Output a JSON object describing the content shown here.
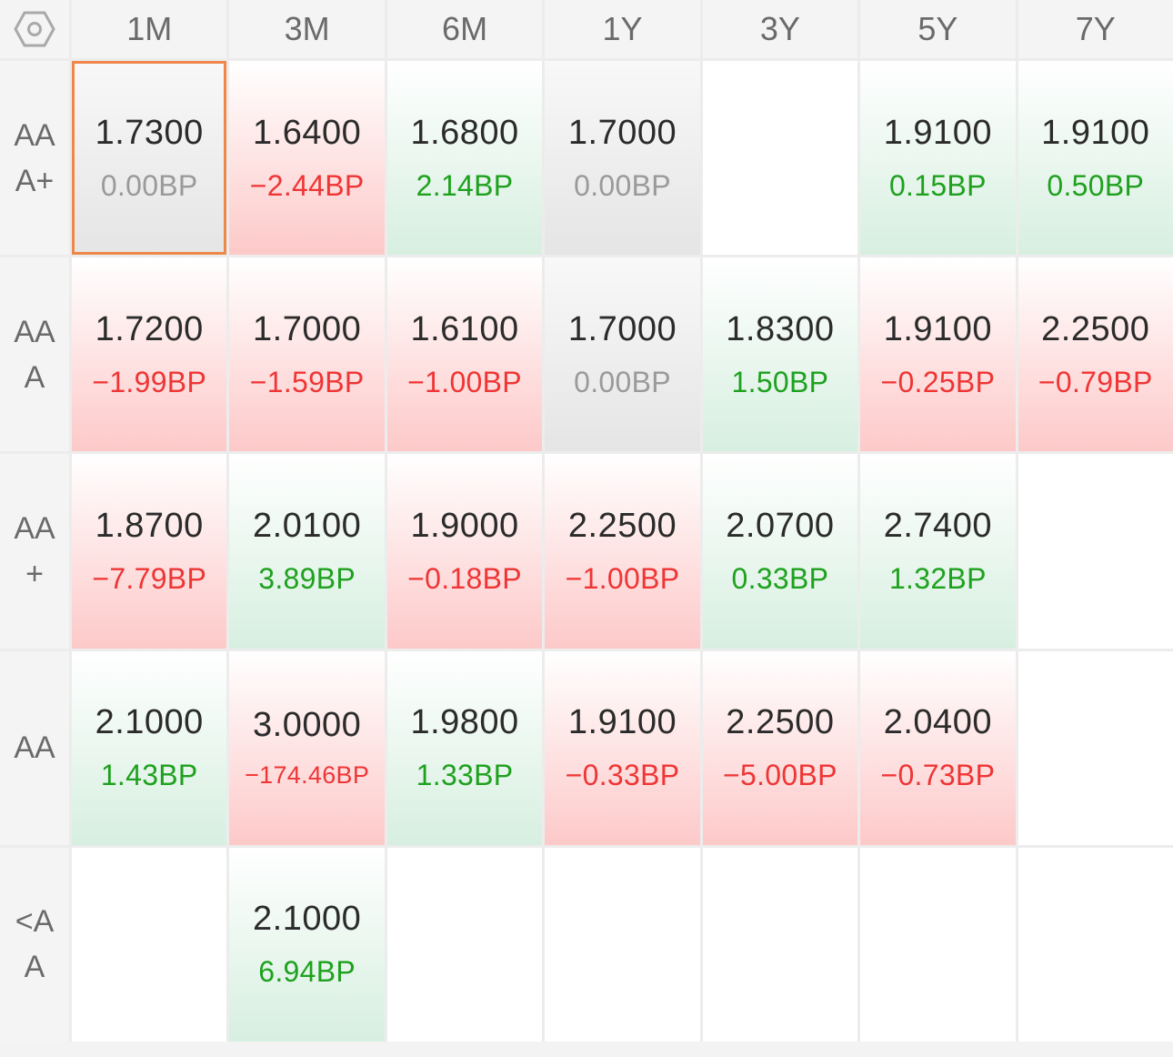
{
  "corner": {
    "icon": "hexagon-settings-icon"
  },
  "columns": [
    "1M",
    "3M",
    "6M",
    "1Y",
    "3Y",
    "5Y",
    "7Y"
  ],
  "rows": [
    {
      "label": "AAA+",
      "cells": [
        {
          "value": "1.7300",
          "change": "0.00BP",
          "dir": "flat",
          "selected": true
        },
        {
          "value": "1.6400",
          "change": "−2.44BP",
          "dir": "down"
        },
        {
          "value": "1.6800",
          "change": "2.14BP",
          "dir": "up"
        },
        {
          "value": "1.7000",
          "change": "0.00BP",
          "dir": "flat"
        },
        null,
        {
          "value": "1.9100",
          "change": "0.15BP",
          "dir": "up"
        },
        {
          "value": "1.9100",
          "change": "0.50BP",
          "dir": "up"
        }
      ]
    },
    {
      "label": "AAA",
      "cells": [
        {
          "value": "1.7200",
          "change": "−1.99BP",
          "dir": "down"
        },
        {
          "value": "1.7000",
          "change": "−1.59BP",
          "dir": "down"
        },
        {
          "value": "1.6100",
          "change": "−1.00BP",
          "dir": "down"
        },
        {
          "value": "1.7000",
          "change": "0.00BP",
          "dir": "flat"
        },
        {
          "value": "1.8300",
          "change": "1.50BP",
          "dir": "up"
        },
        {
          "value": "1.9100",
          "change": "−0.25BP",
          "dir": "down"
        },
        {
          "value": "2.2500",
          "change": "−0.79BP",
          "dir": "down"
        }
      ]
    },
    {
      "label": "AA+",
      "cells": [
        {
          "value": "1.8700",
          "change": "−7.79BP",
          "dir": "down"
        },
        {
          "value": "2.0100",
          "change": "3.89BP",
          "dir": "up"
        },
        {
          "value": "1.9000",
          "change": "−0.18BP",
          "dir": "down"
        },
        {
          "value": "2.2500",
          "change": "−1.00BP",
          "dir": "down"
        },
        {
          "value": "2.0700",
          "change": "0.33BP",
          "dir": "up"
        },
        {
          "value": "2.7400",
          "change": "1.32BP",
          "dir": "up"
        },
        null
      ]
    },
    {
      "label": "AA",
      "cells": [
        {
          "value": "2.1000",
          "change": "1.43BP",
          "dir": "up"
        },
        {
          "value": "3.0000",
          "change": "−174.46BP",
          "dir": "down",
          "small": true
        },
        {
          "value": "1.9800",
          "change": "1.33BP",
          "dir": "up"
        },
        {
          "value": "1.9100",
          "change": "−0.33BP",
          "dir": "down"
        },
        {
          "value": "2.2500",
          "change": "−5.00BP",
          "dir": "down"
        },
        {
          "value": "2.0400",
          "change": "−0.73BP",
          "dir": "down"
        },
        null
      ]
    },
    {
      "label": "<AA",
      "cells": [
        null,
        {
          "value": "2.1000",
          "change": "6.94BP",
          "dir": "up"
        },
        null,
        null,
        null,
        null,
        null
      ]
    }
  ],
  "colors": {
    "up": "#1ea11e",
    "down": "#ef3535",
    "flat": "#9a9a9a",
    "selected_border": "#f0874a"
  }
}
